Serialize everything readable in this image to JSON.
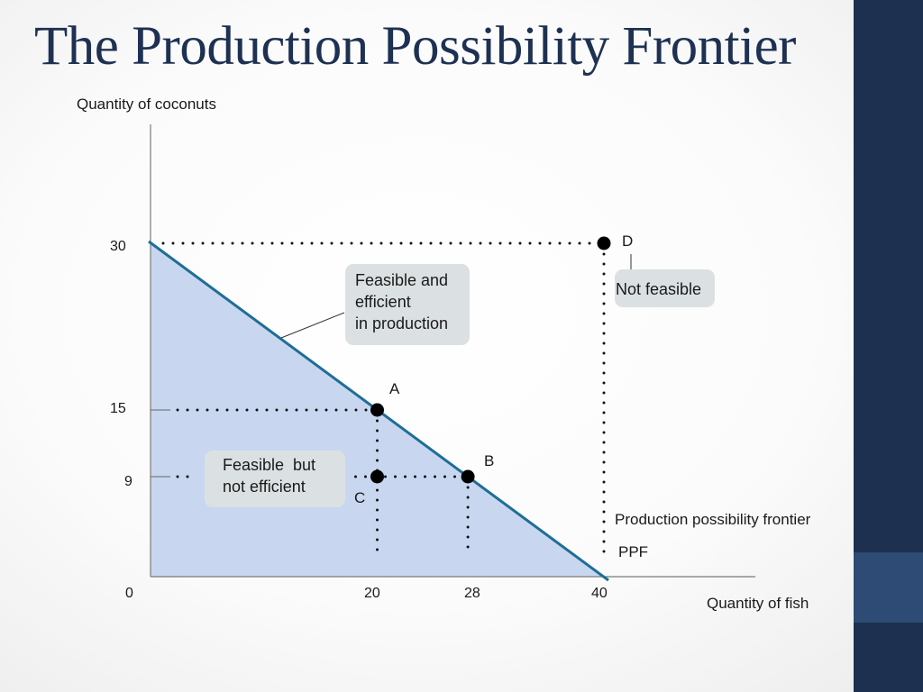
{
  "slide": {
    "title": "The Production Possibility Frontier",
    "colors": {
      "title": "#1e3152",
      "side_band": "#1d3050",
      "side_accent": "#2d4b74"
    }
  },
  "chart_data": {
    "type": "line",
    "xlabel": "Quantity of fish",
    "ylabel": "Quantity of coconuts",
    "xlim": [
      0,
      40
    ],
    "ylim": [
      0,
      30
    ],
    "x_ticks": [
      "0",
      "20",
      "28",
      "40"
    ],
    "y_ticks": [
      "30",
      "15",
      "9"
    ],
    "series": [
      {
        "x": [
          0,
          40
        ],
        "y": [
          30,
          0
        ],
        "color": "#1e6e97",
        "fill": "#c8d7ef"
      }
    ],
    "points": [
      {
        "label": "A",
        "x": 20,
        "y": 15
      },
      {
        "label": "B",
        "x": 28,
        "y": 9
      },
      {
        "label": "C",
        "x": 20,
        "y": 9
      },
      {
        "label": "D",
        "x": 40,
        "y": 30
      }
    ],
    "annotations": {
      "feasible_efficient": [
        "Feasible and",
        "efficient",
        "in production"
      ],
      "feasible_not_efficient": [
        "Feasible  but",
        "not efficient"
      ],
      "not_feasible": "Not feasible",
      "frontier_label": "Production possibility frontier",
      "frontier_abbrev": "PPF"
    }
  }
}
